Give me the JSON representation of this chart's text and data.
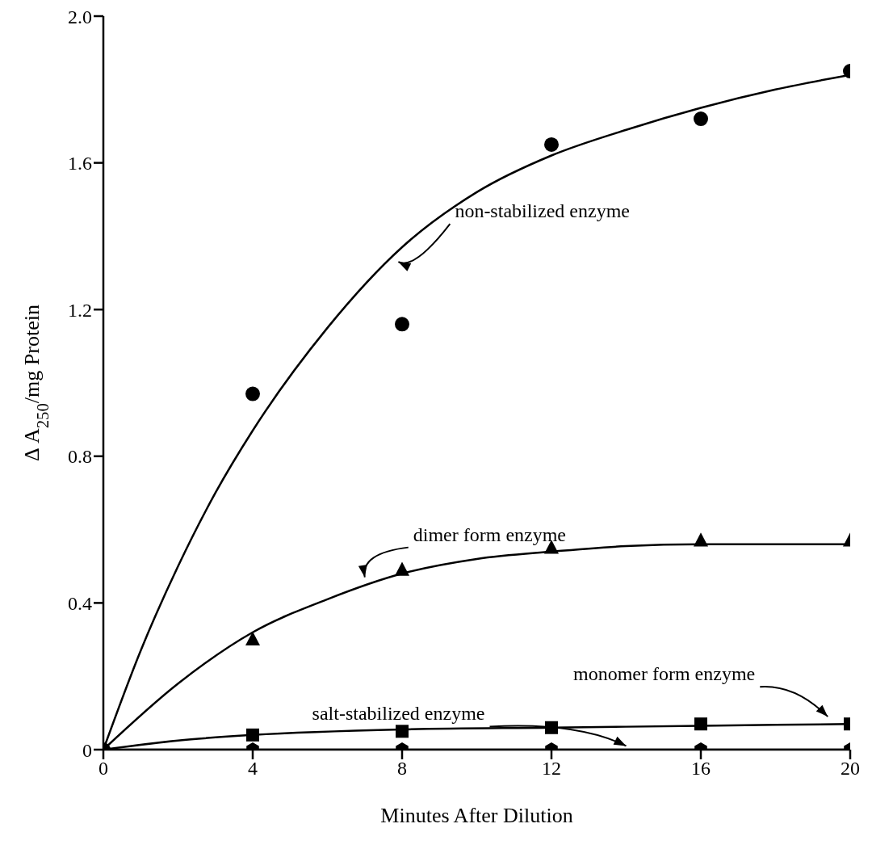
{
  "chart_data": {
    "type": "scatter",
    "xlabel": "Minutes After Dilution",
    "ylabel": "Δ A$_{250}$/mg Protein",
    "xlim": [
      0,
      20
    ],
    "xticks": [
      0,
      4,
      8,
      12,
      16,
      20
    ],
    "ylim": [
      0,
      2
    ],
    "yticks": [
      0,
      0.4,
      0.8,
      1.2,
      1.6,
      {
        "value": 2,
        "label": "2.0"
      }
    ],
    "legend": false,
    "series": [
      {
        "type": "scatter",
        "color": "#000000",
        "marker": "circle",
        "x": [
          0,
          4,
          8,
          12,
          16,
          20
        ],
        "values": [
          0,
          0.97,
          1.16,
          1.65,
          1.72,
          1.85
        ]
      },
      {
        "type": "scatter",
        "color": "#000000",
        "marker": "triangle",
        "x": [
          4,
          8,
          12,
          16,
          20
        ],
        "values": [
          0.3,
          0.49,
          0.55,
          0.57,
          0.57
        ]
      },
      {
        "type": "scatter",
        "color": "#000000",
        "marker": "square",
        "x": [
          4,
          8,
          12,
          16,
          20
        ],
        "values": [
          0.04,
          0.05,
          0.06,
          0.07,
          0.07
        ]
      },
      {
        "type": "scatter",
        "color": "#000000",
        "x": [
          4,
          8,
          12,
          16,
          20
        ],
        "values": [
          0,
          0,
          0,
          0,
          0
        ]
      },
      {
        "type": "line",
        "color": "#000000",
        "marker": "none",
        "line_style": "solid",
        "x": [
          0,
          1,
          2,
          3,
          4,
          6,
          8,
          10,
          12,
          14,
          16,
          18,
          20
        ],
        "values": [
          0,
          0.27,
          0.5,
          0.7,
          0.87,
          1.15,
          1.37,
          1.52,
          1.62,
          1.69,
          1.75,
          1.8,
          1.84
        ]
      },
      {
        "type": "line",
        "color": "#000000",
        "marker": "none",
        "line_style": "solid",
        "x": [
          0,
          2,
          4,
          6,
          8,
          10,
          12,
          14,
          16,
          18,
          20
        ],
        "values": [
          0,
          0.18,
          0.32,
          0.41,
          0.48,
          0.52,
          0.54,
          0.555,
          0.56,
          0.56,
          0.56
        ]
      },
      {
        "type": "line",
        "color": "#000000",
        "marker": "none",
        "line_style": "solid",
        "x": [
          0,
          2,
          4,
          8,
          12,
          16,
          20
        ],
        "values": [
          0,
          0.025,
          0.04,
          0.055,
          0.06,
          0.065,
          0.07
        ]
      },
      {
        "type": "line",
        "color": "#000000",
        "marker": "none",
        "line_style": "solid",
        "x": [
          0,
          20
        ],
        "values": [
          0,
          0
        ]
      }
    ],
    "annotations": [
      "non-stabilized enzyme",
      "dimer form enzyme",
      "monomer form enzyme",
      "salt-stabilized enzyme"
    ]
  }
}
